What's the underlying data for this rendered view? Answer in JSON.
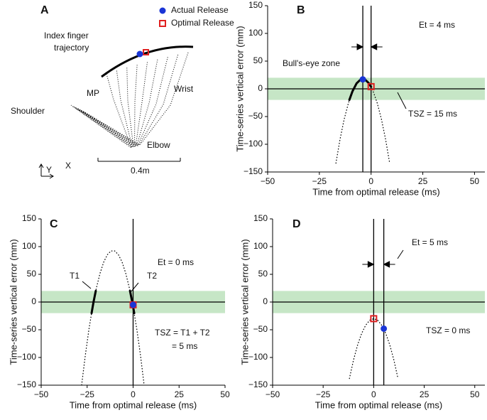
{
  "diagram": {
    "panel": "A",
    "legend": [
      {
        "name": "Actual Release",
        "shape": "circle",
        "color": "#1a35d6"
      },
      {
        "name": "Optimal Release",
        "shape": "square",
        "color": "#e02020"
      }
    ],
    "labels": [
      "Index finger",
      "trajectory",
      "MP",
      "Wrist",
      "Shoulder",
      "Elbow",
      "Y",
      "X",
      "0.4m"
    ]
  },
  "chart_data": [
    {
      "type": "line",
      "panel": "B",
      "xlabel": "Time from optimal release (ms)",
      "ylabel": "Time-series vertical error (mm)",
      "xlim": [
        -50,
        55
      ],
      "xticks": [
        {
          "value": -50,
          "label": "−50"
        },
        {
          "value": -25,
          "label": "−25"
        },
        0,
        25,
        50
      ],
      "ylim": [
        -150,
        150
      ],
      "yticks": [
        {
          "value": -150,
          "label": "−150"
        },
        {
          "value": -100,
          "label": "−100"
        },
        {
          "value": -50,
          "label": "−50"
        },
        0,
        50,
        100,
        150
      ],
      "zone": [
        -20,
        20
      ],
      "zone_color": "#c6e6c6",
      "hline": 0,
      "vlines": [
        -4,
        0
      ],
      "series": [
        {
          "style": "dotted",
          "x": [
            -17,
            -15,
            -13,
            -11,
            -9,
            -7,
            -5,
            -3,
            -1,
            1,
            3,
            5,
            7,
            9
          ],
          "values": [
            -134.1,
            -90.9,
            -54.9,
            -26.1,
            -4.5,
            9.9,
            17.1,
            17.1,
            9.9,
            -4.5,
            -26.1,
            -54.9,
            -90.9,
            -134.1
          ]
        },
        {
          "style": "solid",
          "x": [
            -10.5,
            -9,
            -7,
            -5,
            -4,
            -3,
            -1,
            0
          ],
          "values": [
            -20,
            -4.5,
            9.9,
            17.1,
            18,
            17.1,
            9.9,
            3.6
          ]
        }
      ],
      "markers": [
        {
          "shape": "circle",
          "color": "#1a35d6",
          "x": -4,
          "y": 17
        },
        {
          "shape": "square",
          "color": "#e02020",
          "x": 0,
          "y": 4
        }
      ],
      "annotations": [
        "Et = 4 ms",
        "Bull's-eye zone",
        "TSZ = 15 ms"
      ]
    },
    {
      "type": "line",
      "panel": "C",
      "xlabel": "Time from optimal release (ms)",
      "ylabel": "Time-series vertical error (mm)",
      "xlim": [
        -50,
        50
      ],
      "xticks": [
        {
          "value": -50,
          "label": "−50"
        },
        {
          "value": -25,
          "label": "−25"
        },
        0,
        25,
        50
      ],
      "ylim": [
        -150,
        150
      ],
      "yticks": [
        {
          "value": -150,
          "label": "−150"
        },
        {
          "value": -100,
          "label": "−100"
        },
        {
          "value": -50,
          "label": "−50"
        },
        0,
        50,
        100,
        150
      ],
      "zone": [
        -20,
        20
      ],
      "zone_color": "#c6e6c6",
      "hline": 0,
      "vlines": [
        0
      ],
      "series": [
        {
          "style": "dotted",
          "x": [
            -28,
            -26,
            -24,
            -22,
            -20,
            -18,
            -16,
            -14,
            -12,
            -10,
            -8,
            -6,
            -4,
            -2,
            0,
            2,
            4,
            6
          ],
          "values": [
            -149.8,
            -96,
            -49,
            -8.6,
            25,
            51.8,
            72,
            85.4,
            92.2,
            92.2,
            85.4,
            72,
            51.8,
            25,
            -8.6,
            -49,
            -96,
            -149.8
          ]
        },
        {
          "style": "solid",
          "x": [
            -22.6,
            -21.5,
            -20.3
          ],
          "values": [
            -20,
            0.4,
            20
          ]
        },
        {
          "style": "solid",
          "x": [
            -1.7,
            -0.5,
            0.6
          ],
          "values": [
            20.3,
            0.4,
            -20
          ]
        }
      ],
      "markers": [
        {
          "shape": "square",
          "color": "#e02020",
          "x": 0,
          "y": -5
        },
        {
          "shape": "circle",
          "color": "#1a35d6",
          "x": 0,
          "y": -5
        }
      ],
      "annotations": [
        "Et = 0 ms",
        "T1",
        "T2",
        "TSZ = T1 + T2",
        "= 5 ms"
      ]
    },
    {
      "type": "line",
      "panel": "D",
      "xlabel": "Time from optimal release (ms)",
      "ylabel": "Time-series vertical error (mm)",
      "xlim": [
        -50,
        55
      ],
      "xticks": [
        {
          "value": -50,
          "label": "−50"
        },
        {
          "value": -25,
          "label": "−25"
        },
        0,
        25,
        50
      ],
      "ylim": [
        -150,
        150
      ],
      "yticks": [
        {
          "value": -150,
          "label": "−150"
        },
        {
          "value": -100,
          "label": "−100"
        },
        {
          "value": -50,
          "label": "−50"
        },
        0,
        50,
        100,
        150
      ],
      "zone": [
        -20,
        20
      ],
      "zone_color": "#c6e6c6",
      "hline": 0,
      "vlines": [
        0,
        5
      ],
      "series": [
        {
          "style": "dotted",
          "x": [
            -12,
            -10,
            -8,
            -6,
            -4,
            -2,
            0,
            2,
            4,
            6,
            8,
            10,
            12
          ],
          "values": [
            -138,
            -105,
            -78,
            -57,
            -42,
            -33,
            -30,
            -33,
            -42,
            -57,
            -78,
            -105,
            -138
          ]
        }
      ],
      "markers": [
        {
          "shape": "square",
          "color": "#e02020",
          "x": 0,
          "y": -30
        },
        {
          "shape": "circle",
          "color": "#1a35d6",
          "x": 5,
          "y": -48
        }
      ],
      "annotations": [
        "Et = 5 ms",
        "TSZ = 0 ms"
      ]
    }
  ]
}
